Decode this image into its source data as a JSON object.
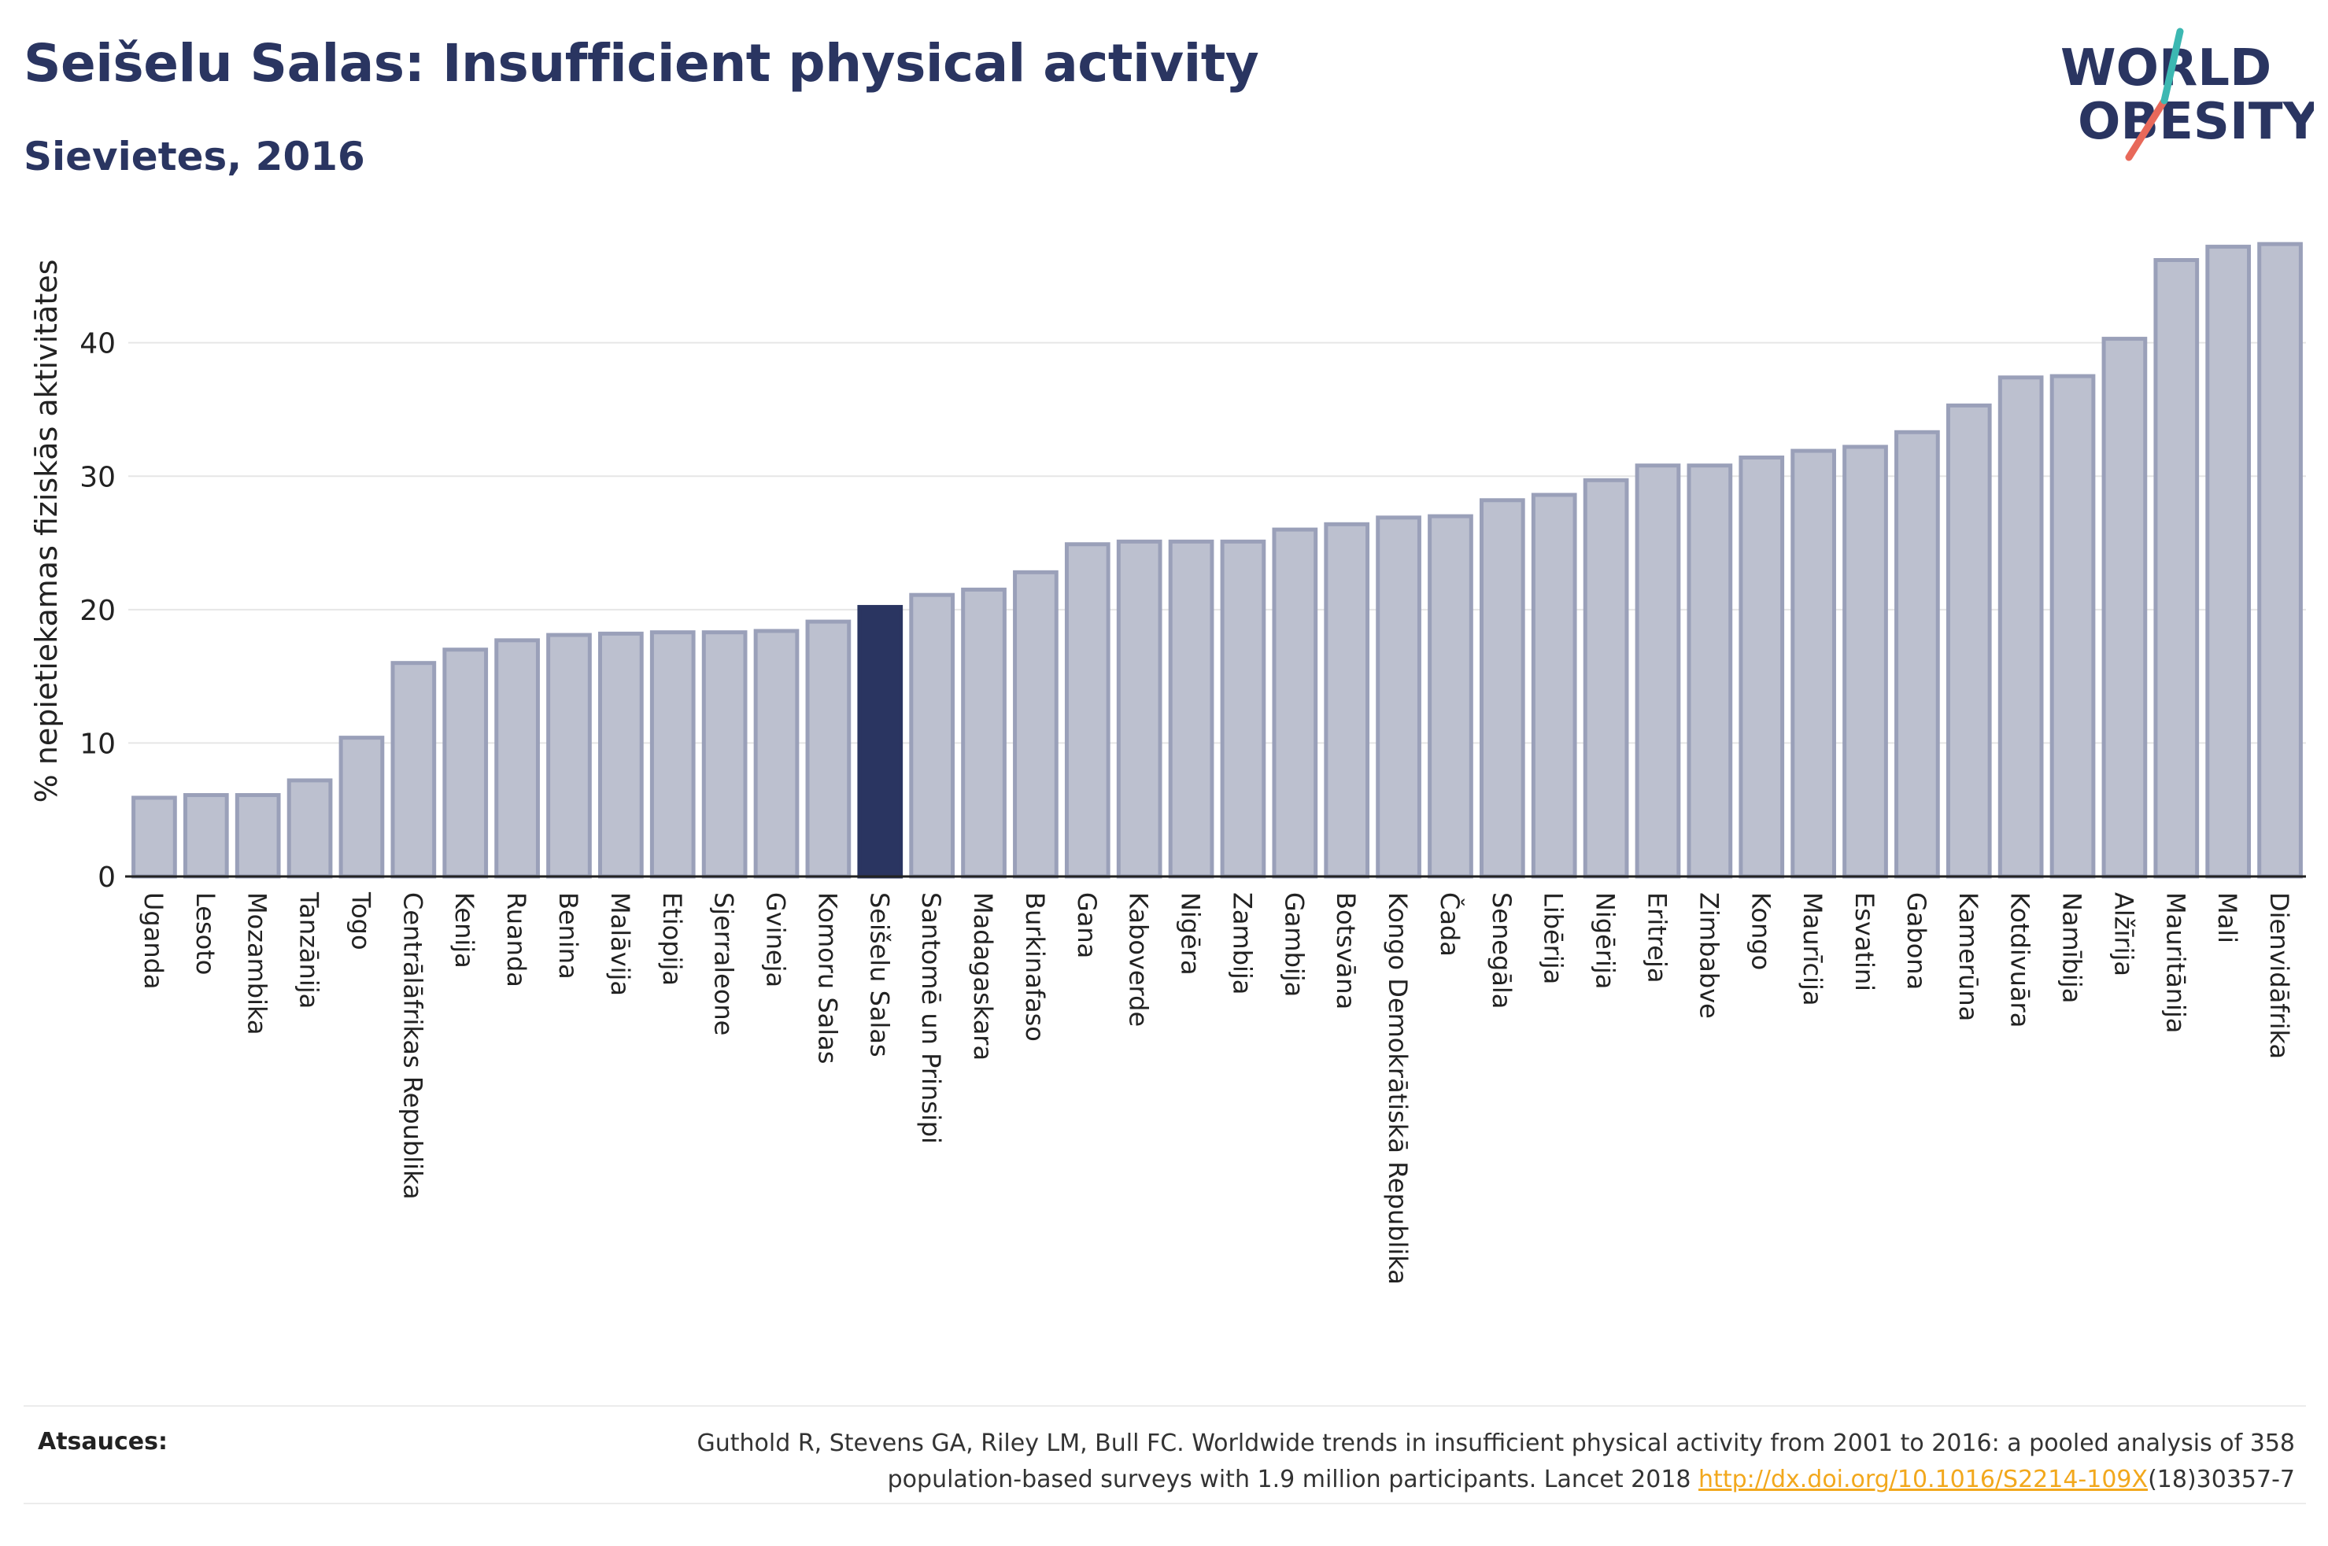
{
  "title": "Seišelu Salas: Insufficient physical activity",
  "subtitle": "Sievietes, 2016",
  "logo": {
    "line1": "WORLD",
    "line2": "OBESITY"
  },
  "colors": {
    "highlight": "#2a3561",
    "bar_fill": "#bcc0cf",
    "bar_stroke": "#9aa0b9",
    "text": "#2a3561",
    "link": "#f2a81d"
  },
  "chart_data": {
    "type": "bar",
    "ylabel": "% nepietiekamas fiziskās aktivitātes",
    "xlabel": "",
    "ylim": [
      0,
      48
    ],
    "yticks": [
      0,
      10,
      20,
      30,
      40
    ],
    "grid": true,
    "highlight": "Seišelu Salas",
    "categories": [
      "Uganda",
      "Lesoto",
      "Mozambika",
      "Tanzānija",
      "Togo",
      "Centrālāfrikas Republika",
      "Kenija",
      "Ruanda",
      "Benina",
      "Malāvija",
      "Etiopija",
      "Sjerraleone",
      "Gvineja",
      "Komoru Salas",
      "Seišelu Salas",
      "Santomē un Prinsipi",
      "Madagaskara",
      "Burkinafaso",
      "Gana",
      "Kaboverde",
      "Nigēra",
      "Zambija",
      "Gambija",
      "Botsvāna",
      "Kongo Demokrātiskā Republika",
      "Čada",
      "Senegāla",
      "Libērija",
      "Nigērija",
      "Eritreja",
      "Zimbabve",
      "Kongo",
      "Maurīcija",
      "Esvatini",
      "Gabona",
      "Kamerūna",
      "Kotdivuāra",
      "Namībija",
      "Alžīrija",
      "Mauritānija",
      "Mali",
      "Dienvidāfrika"
    ],
    "values": [
      5.9,
      6.1,
      6.1,
      7.2,
      10.4,
      16.0,
      17.0,
      17.7,
      18.1,
      18.2,
      18.3,
      18.3,
      18.4,
      19.1,
      20.2,
      21.1,
      21.5,
      22.8,
      24.9,
      25.1,
      25.1,
      25.1,
      26.0,
      26.4,
      26.9,
      27.0,
      28.2,
      28.6,
      29.7,
      30.8,
      30.8,
      31.4,
      31.9,
      32.2,
      33.3,
      35.3,
      37.4,
      37.5,
      40.3,
      46.2,
      47.2,
      47.4
    ]
  },
  "source": {
    "label": "Atsauces:",
    "line1": "Guthold R, Stevens GA, Riley LM, Bull FC. Worldwide trends in insufficient physical activity from 2001 to 2016: a pooled analysis of 358",
    "line2_pre": "population-based surveys with 1.9 million participants. Lancet 2018 ",
    "link": "http://dx.doi.org/10.1016/S2214-109X",
    "line2_post": "(18)30357-7"
  }
}
